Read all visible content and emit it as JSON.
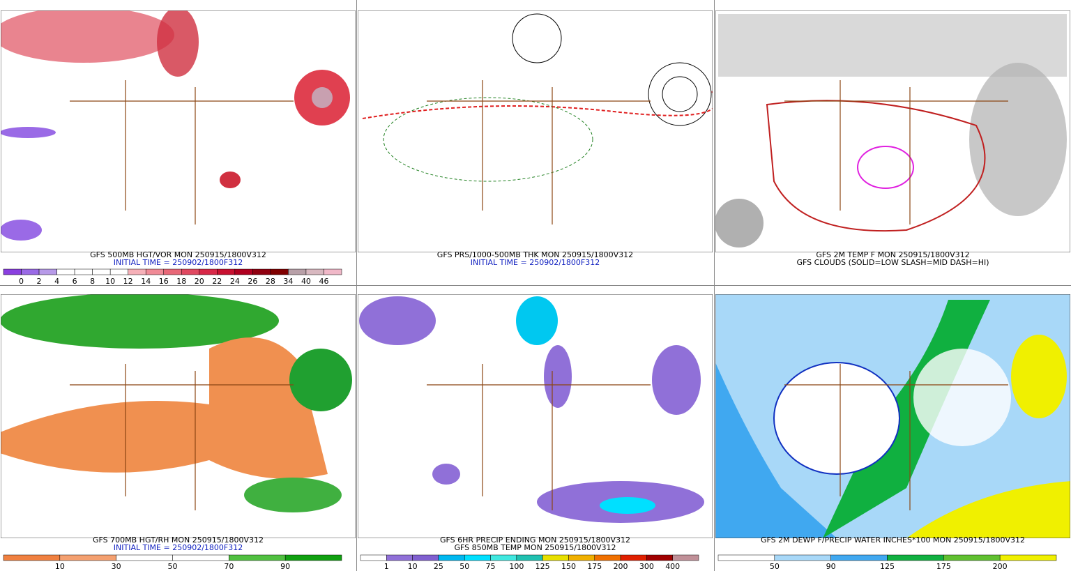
{
  "panels": [
    {
      "captions": [
        "GFS 500MB HGT/VOR MON 250915/1800V312",
        "INITIAL TIME = 250902/1800F312"
      ],
      "colorbar": {
        "colors": [
          "#8a3fe0",
          "#9a6ae6",
          "#b79ae8",
          "#ffffff",
          "#ffffff",
          "#ffffff",
          "#ffffff",
          "#f6b0b8",
          "#f08a96",
          "#e86878",
          "#e04860",
          "#d82848",
          "#c81030",
          "#b00020",
          "#900010",
          "#800000",
          "#b8a0a8",
          "#d8b8c0",
          "#f0b8c8"
        ],
        "labels": [
          "0",
          "2",
          "4",
          "6",
          "8",
          "10",
          "12",
          "14",
          "16",
          "18",
          "20",
          "22",
          "24",
          "26",
          "28",
          "34",
          "40",
          "46"
        ]
      }
    },
    {
      "captions": [
        "GFS PRS/1000-500MB THK MON 250915/1800V312",
        "INITIAL TIME = 250902/1800F312"
      ]
    },
    {
      "captions": [
        "GFS 2M TEMP F MON 250915/1800V312",
        "GFS CLOUDS (SOLID=LOW SLASH=MID DASH=HI)"
      ]
    },
    {
      "captions": [
        "GFS 700MB HGT/RH MON 250915/1800V312",
        "INITIAL TIME = 250902/1800F312"
      ],
      "colorbar": {
        "colors": [
          "#f08040",
          "#f4a070",
          "#ffffff",
          "#ffffff",
          "#50c040",
          "#10a010"
        ],
        "labels": [
          "10",
          "30",
          "50",
          "70",
          "90"
        ]
      }
    },
    {
      "captions": [
        "GFS 6HR PRECIP ENDING MON 250915/1800V312",
        "GFS 850MB TEMP MON 250915/1800V312"
      ],
      "colorbar": {
        "colors": [
          "#ffffff",
          "#9070d8",
          "#8060d0",
          "#00b8f0",
          "#00e0ff",
          "#40e8e0",
          "#20c0b0",
          "#e8e000",
          "#f0b000",
          "#f07000",
          "#e02000",
          "#a00000",
          "#c09098"
        ],
        "labels": [
          "1",
          "10",
          "25",
          "50",
          "75",
          "100",
          "125",
          "150",
          "175",
          "200",
          "300",
          "400"
        ]
      }
    },
    {
      "captions": [
        "GFS 2M DEWP F/PRECIP WATER INCHES*100 MON 250915/1800V312"
      ],
      "colorbar": {
        "colors": [
          "#ffffff",
          "#a8d8f8",
          "#40a8f0",
          "#10b040",
          "#60c030",
          "#f0f000"
        ],
        "labels": [
          "50",
          "90",
          "125",
          "175",
          "200"
        ]
      }
    }
  ]
}
